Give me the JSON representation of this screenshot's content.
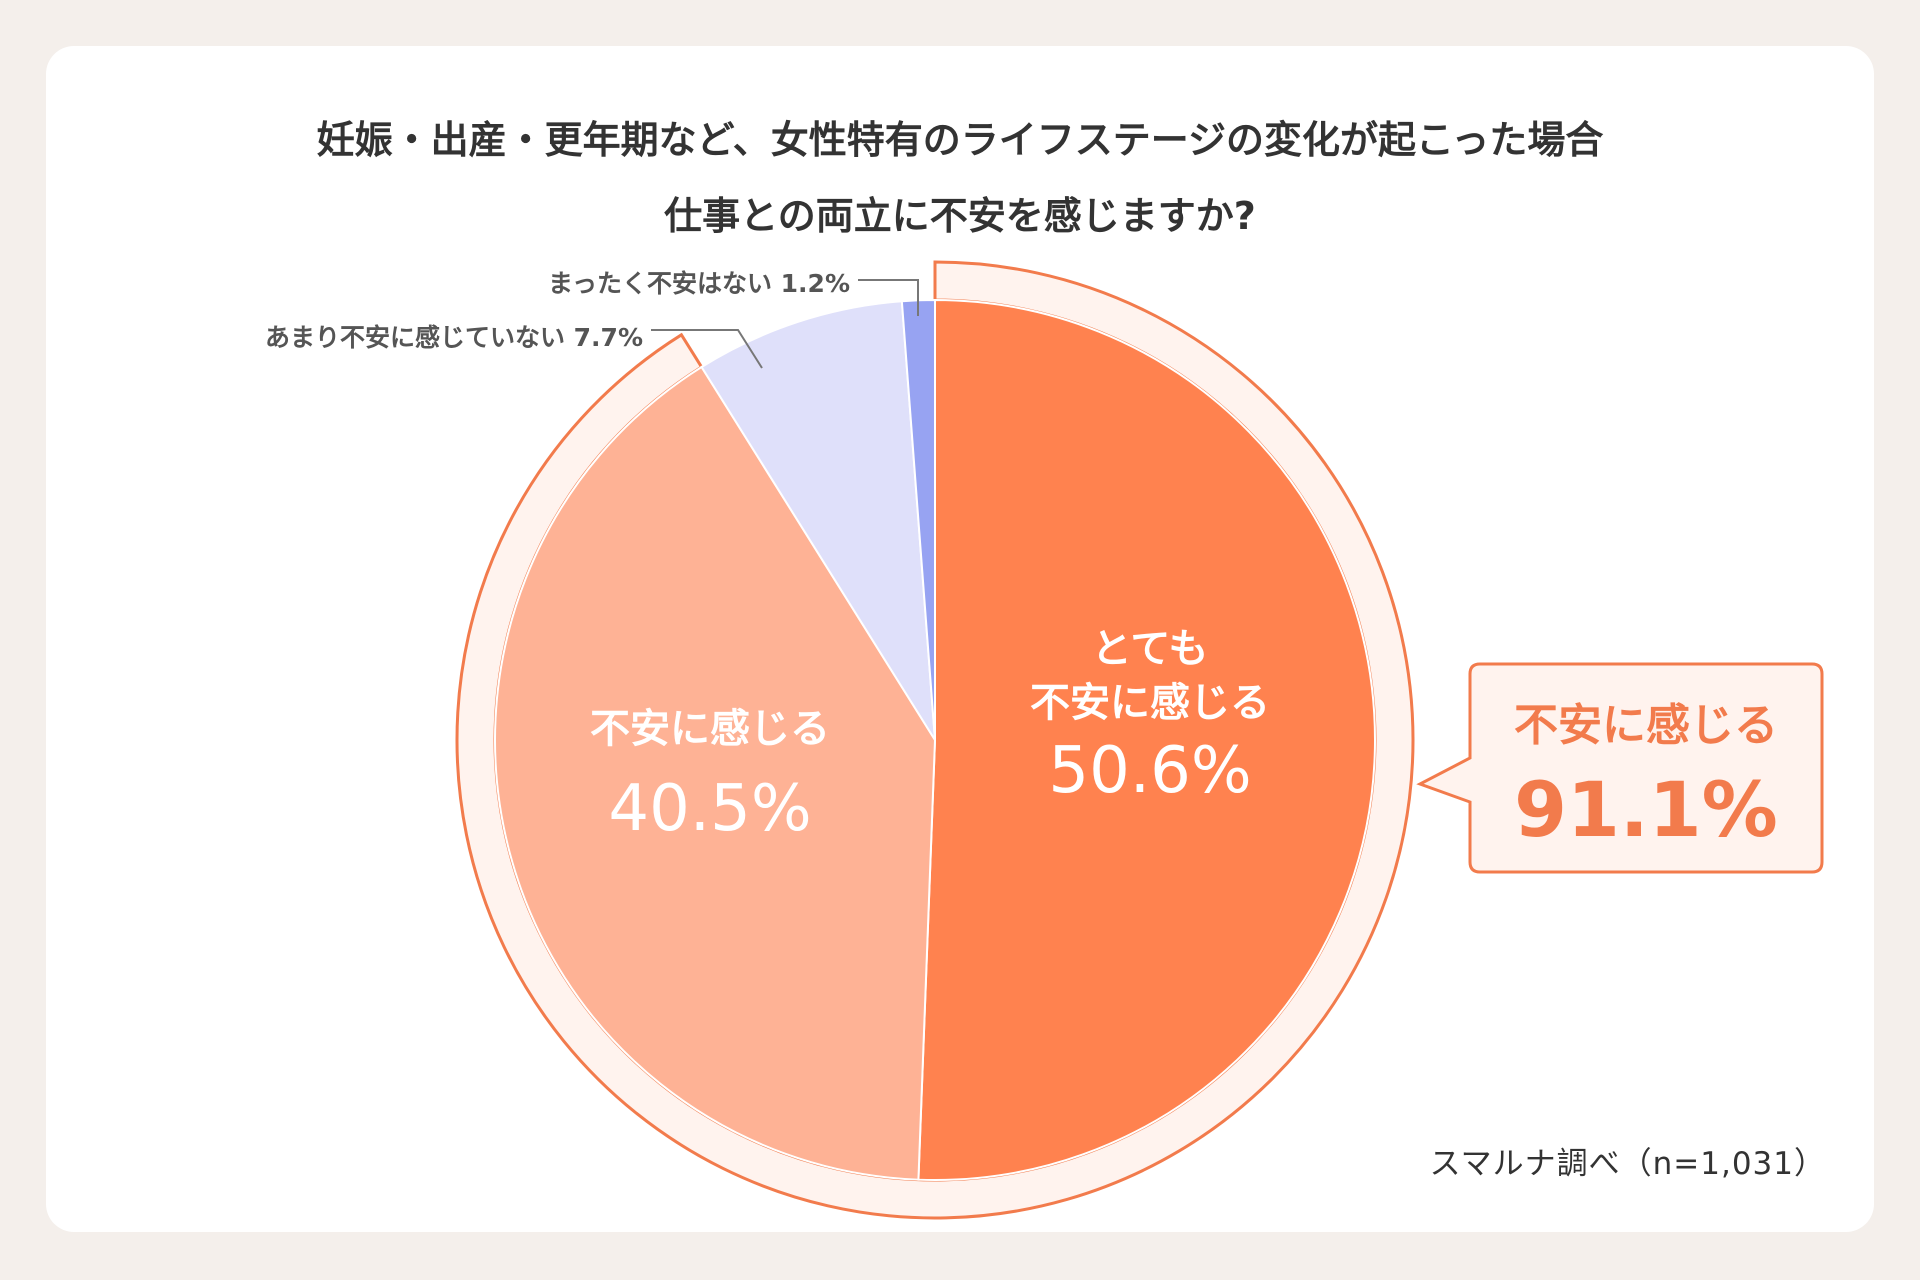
{
  "title_line1": "妊娠・出産・更年期など、女性特有のライフステージの変化が起こった場合",
  "title_line2": "仕事との両立に不安を感じますか?",
  "source": "スマルナ調べ（n=1,031）",
  "chart_data": {
    "type": "pie",
    "title": "妊娠・出産・更年期など、女性特有のライフステージの変化が起こった場合 仕事との両立に不安を感じますか?",
    "series": [
      {
        "slices": [
          {
            "label": "とても不安に感じる",
            "label_lines": [
              "とても",
              "不安に感じる"
            ],
            "value": 50.6,
            "value_text": "50.6%",
            "color": "#ff824f"
          },
          {
            "label": "不安に感じる",
            "label_lines": [
              "不安に感じる"
            ],
            "value": 40.5,
            "value_text": "40.5%",
            "color": "#feb295"
          },
          {
            "label": "あまり不安に感じていない",
            "label_lines": [
              "あまり不安に感じていない"
            ],
            "value": 7.7,
            "value_text": "7.7%",
            "color": "#dfe0fa"
          },
          {
            "label": "まったく不安はない",
            "label_lines": [
              "まったく不安はない"
            ],
            "value": 1.2,
            "value_text": "1.2%",
            "color": "#97a3f2"
          }
        ]
      }
    ],
    "annotation": {
      "label": "不安に感じる",
      "value": 91.1,
      "value_text": "91.1%",
      "color": "#f27b4c"
    }
  }
}
